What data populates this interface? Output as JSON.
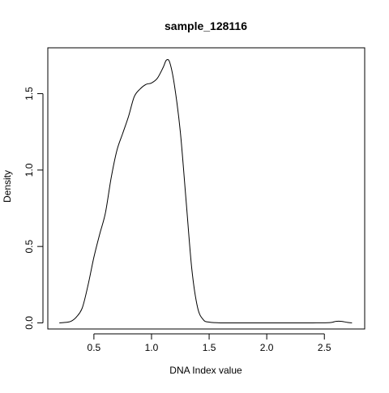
{
  "chart_data": {
    "type": "line",
    "title": "sample_128116",
    "xlabel": "DNA Index value",
    "ylabel": "Density",
    "xlim": [
      0.1,
      2.85
    ],
    "ylim": [
      -0.04,
      1.8
    ],
    "x_ticks": [
      {
        "value": 0.5,
        "label": "0.5"
      },
      {
        "value": 1.0,
        "label": "1.0"
      },
      {
        "value": 1.5,
        "label": "1.5"
      },
      {
        "value": 2.0,
        "label": "2.0"
      },
      {
        "value": 2.5,
        "label": "2.5"
      }
    ],
    "y_ticks": [
      {
        "value": 0.0,
        "label": "0.0"
      },
      {
        "value": 0.5,
        "label": "0.5"
      },
      {
        "value": 1.0,
        "label": "1.0"
      },
      {
        "value": 1.5,
        "label": "1.5"
      }
    ],
    "grid": false,
    "series": [
      {
        "color": "#000000",
        "x": [
          0.2,
          0.25,
          0.3,
          0.35,
          0.4,
          0.45,
          0.5,
          0.55,
          0.6,
          0.65,
          0.7,
          0.75,
          0.8,
          0.85,
          0.9,
          0.95,
          1.0,
          1.05,
          1.1,
          1.13,
          1.16,
          1.2,
          1.25,
          1.3,
          1.35,
          1.4,
          1.45,
          1.5,
          1.6,
          1.8,
          2.0,
          2.2,
          2.4,
          2.55,
          2.6,
          2.65,
          2.7,
          2.74
        ],
        "y": [
          0.0,
          0.003,
          0.01,
          0.04,
          0.1,
          0.25,
          0.43,
          0.58,
          0.72,
          0.95,
          1.13,
          1.24,
          1.35,
          1.48,
          1.53,
          1.56,
          1.57,
          1.6,
          1.67,
          1.72,
          1.7,
          1.55,
          1.25,
          0.8,
          0.35,
          0.1,
          0.02,
          0.005,
          0.0,
          0.0,
          0.0,
          0.0,
          0.0,
          0.002,
          0.01,
          0.01,
          0.003,
          0.0
        ]
      }
    ]
  }
}
